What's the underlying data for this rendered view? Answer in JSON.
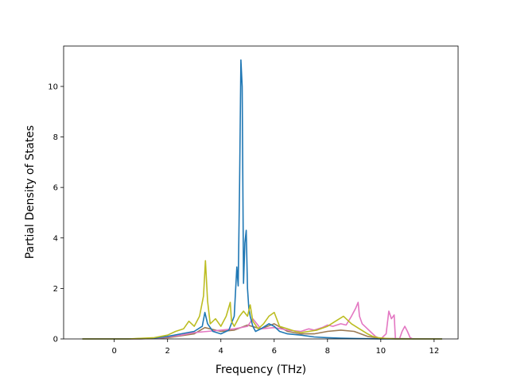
{
  "chart_data": {
    "type": "line",
    "title": "",
    "xlabel": "Frequency (THz)",
    "ylabel": "Partial Density of States",
    "xlim": [
      -1.9,
      12.9
    ],
    "ylim": [
      0,
      11.6
    ],
    "xticks": [
      0,
      2,
      4,
      6,
      8,
      10,
      12
    ],
    "yticks": [
      0,
      2,
      4,
      6,
      8,
      10
    ],
    "grid": false,
    "legend": "none",
    "series": [
      {
        "color": "#1f77b4",
        "x": [
          -1.2,
          0.5,
          1.5,
          2.0,
          2.5,
          3.0,
          3.3,
          3.4,
          3.5,
          3.7,
          4.0,
          4.3,
          4.5,
          4.6,
          4.65,
          4.7,
          4.75,
          4.8,
          4.85,
          4.9,
          4.95,
          5.0,
          5.05,
          5.1,
          5.2,
          5.3,
          5.5,
          5.8,
          6.0,
          6.2,
          6.5,
          7.0,
          7.5,
          8.0,
          8.5,
          9.0,
          9.5,
          10.0,
          10.5,
          11.0,
          12.3
        ],
        "values": [
          0,
          0,
          0.03,
          0.1,
          0.2,
          0.3,
          0.5,
          1.05,
          0.6,
          0.3,
          0.2,
          0.35,
          0.9,
          2.85,
          2.1,
          6.0,
          11.05,
          10.0,
          2.2,
          3.8,
          4.3,
          2.0,
          1.2,
          0.9,
          0.5,
          0.3,
          0.4,
          0.6,
          0.5,
          0.3,
          0.2,
          0.15,
          0.08,
          0.05,
          0.03,
          0.02,
          0.01,
          0,
          0,
          0,
          0
        ]
      },
      {
        "color": "#bcbd22",
        "x": [
          -1.2,
          0.5,
          1.5,
          2.0,
          2.3,
          2.6,
          2.8,
          3.0,
          3.2,
          3.35,
          3.42,
          3.5,
          3.6,
          3.8,
          4.0,
          4.2,
          4.35,
          4.4,
          4.5,
          4.7,
          4.85,
          5.0,
          5.1,
          5.2,
          5.4,
          5.6,
          5.8,
          6.0,
          6.2,
          6.5,
          6.8,
          7.0,
          7.3,
          7.6,
          8.0,
          8.3,
          8.6,
          8.9,
          9.2,
          9.5,
          9.7,
          9.9,
          10.2,
          10.5,
          11.0,
          12.3
        ],
        "values": [
          0,
          0,
          0.05,
          0.15,
          0.3,
          0.4,
          0.7,
          0.5,
          0.9,
          1.7,
          3.1,
          1.5,
          0.6,
          0.8,
          0.5,
          0.9,
          1.45,
          0.7,
          0.5,
          0.9,
          1.1,
          0.9,
          1.35,
          0.7,
          0.4,
          0.6,
          0.9,
          1.05,
          0.5,
          0.4,
          0.3,
          0.25,
          0.3,
          0.35,
          0.5,
          0.7,
          0.9,
          0.6,
          0.4,
          0.2,
          0.1,
          0.05,
          0.02,
          0,
          0,
          0
        ]
      },
      {
        "color": "#e377c2",
        "x": [
          -1.2,
          0.5,
          1.5,
          2.0,
          2.5,
          3.0,
          3.5,
          4.0,
          4.5,
          5.0,
          5.2,
          5.5,
          6.0,
          6.5,
          7.0,
          7.3,
          7.5,
          7.8,
          8.0,
          8.2,
          8.5,
          8.7,
          8.9,
          9.05,
          9.15,
          9.2,
          9.3,
          9.4,
          9.6,
          9.8,
          10.0,
          10.2,
          10.3,
          10.4,
          10.5,
          10.55,
          10.6,
          10.7,
          10.8,
          10.9,
          11.0,
          11.1,
          11.2,
          12.3
        ],
        "values": [
          0,
          0,
          0.02,
          0.08,
          0.15,
          0.25,
          0.3,
          0.35,
          0.4,
          0.5,
          0.8,
          0.4,
          0.45,
          0.35,
          0.3,
          0.4,
          0.35,
          0.45,
          0.55,
          0.5,
          0.6,
          0.55,
          0.9,
          1.2,
          1.45,
          0.9,
          0.6,
          0.5,
          0.3,
          0.1,
          0.0,
          0.2,
          1.1,
          0.8,
          0.95,
          0.0,
          0.0,
          0.0,
          0.3,
          0.5,
          0.3,
          0.05,
          0.0,
          0.0
        ]
      },
      {
        "color": "#9c7a54",
        "x": [
          -1.2,
          1.0,
          2.0,
          3.0,
          3.4,
          4.0,
          4.5,
          5.0,
          5.5,
          6.0,
          6.5,
          7.0,
          7.5,
          8.0,
          8.5,
          9.0,
          9.5,
          10.0,
          12.3
        ],
        "values": [
          0,
          0,
          0.05,
          0.2,
          0.45,
          0.3,
          0.35,
          0.55,
          0.4,
          0.6,
          0.3,
          0.2,
          0.2,
          0.3,
          0.35,
          0.3,
          0.1,
          0.02,
          0
        ]
      }
    ]
  }
}
